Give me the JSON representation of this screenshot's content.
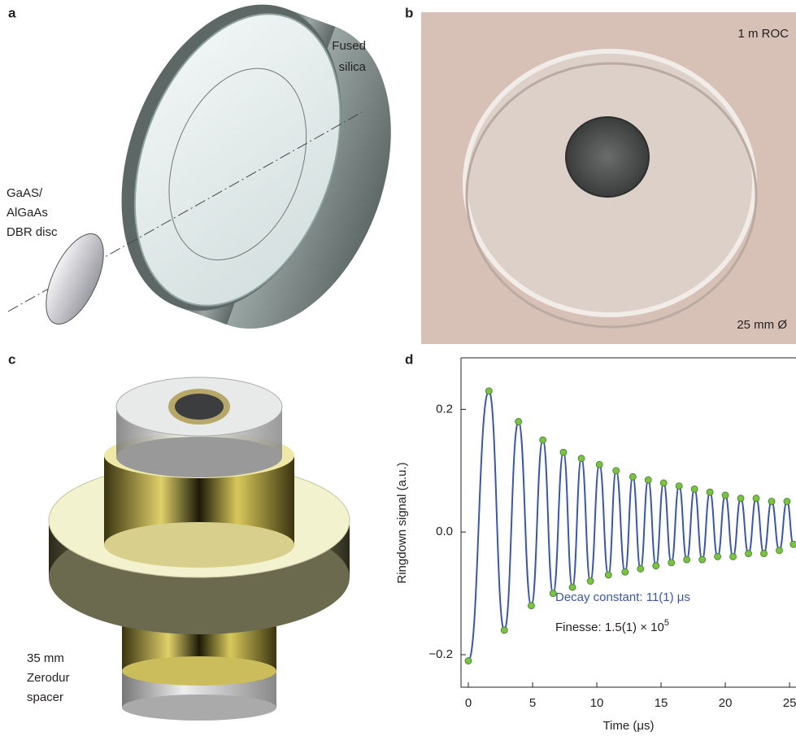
{
  "panels": {
    "a": {
      "label": "a",
      "fused_silica": [
        "Fused",
        "silica"
      ],
      "disc": [
        "GaAS/",
        "AlGaAs",
        "DBR disc"
      ]
    },
    "b": {
      "label": "b",
      "roc": "1 m ROC",
      "diameter": "25 mm Ø"
    },
    "c": {
      "label": "c",
      "spacer": [
        "35 mm",
        "Zerodur",
        "spacer"
      ]
    },
    "d": {
      "label": "d"
    }
  },
  "chart_data": {
    "type": "line",
    "x_label": "Time (μs)",
    "y_label": "Ringdown signal (a.u.)",
    "x": [
      0,
      1.6,
      2.8,
      3.9,
      4.9,
      5.8,
      6.6,
      7.4,
      8.1,
      8.8,
      9.5,
      10.2,
      10.9,
      11.5,
      12.2,
      12.8,
      13.4,
      14.0,
      14.6,
      15.2,
      15.8,
      16.4,
      17.0,
      17.6,
      18.2,
      18.8,
      19.4,
      20.0,
      20.6,
      21.2,
      21.8,
      22.4,
      23.0,
      23.6,
      24.2,
      24.8,
      25.3
    ],
    "series": [
      {
        "color": "#3b57a6",
        "marker_color": "#7cc242",
        "values": [
          -0.21,
          0.23,
          -0.16,
          0.18,
          -0.12,
          0.15,
          -0.1,
          0.13,
          -0.09,
          0.12,
          -0.08,
          0.11,
          -0.07,
          0.1,
          -0.065,
          0.09,
          -0.06,
          0.085,
          -0.055,
          0.08,
          -0.05,
          0.075,
          -0.045,
          0.07,
          -0.045,
          0.065,
          -0.04,
          0.06,
          -0.04,
          0.055,
          -0.035,
          0.055,
          -0.035,
          0.05,
          -0.03,
          0.05,
          -0.02
        ]
      }
    ],
    "xlim": [
      -0.57,
      25.5
    ],
    "ylim": [
      -0.253,
      0.284
    ],
    "xticks": [
      0,
      5,
      10,
      15,
      20,
      25
    ],
    "yticks": [
      {
        "value": -0.2,
        "label": "−0.2"
      },
      {
        "value": 0,
        "label": "0.0"
      },
      0.2
    ],
    "annotations": [
      {
        "text": "Decay constant: 11(1) μs",
        "color": "#3b57a6"
      },
      {
        "text": "Finesse: 1.5(1) × 10",
        "sup": "5",
        "color": "#231f20"
      }
    ]
  }
}
